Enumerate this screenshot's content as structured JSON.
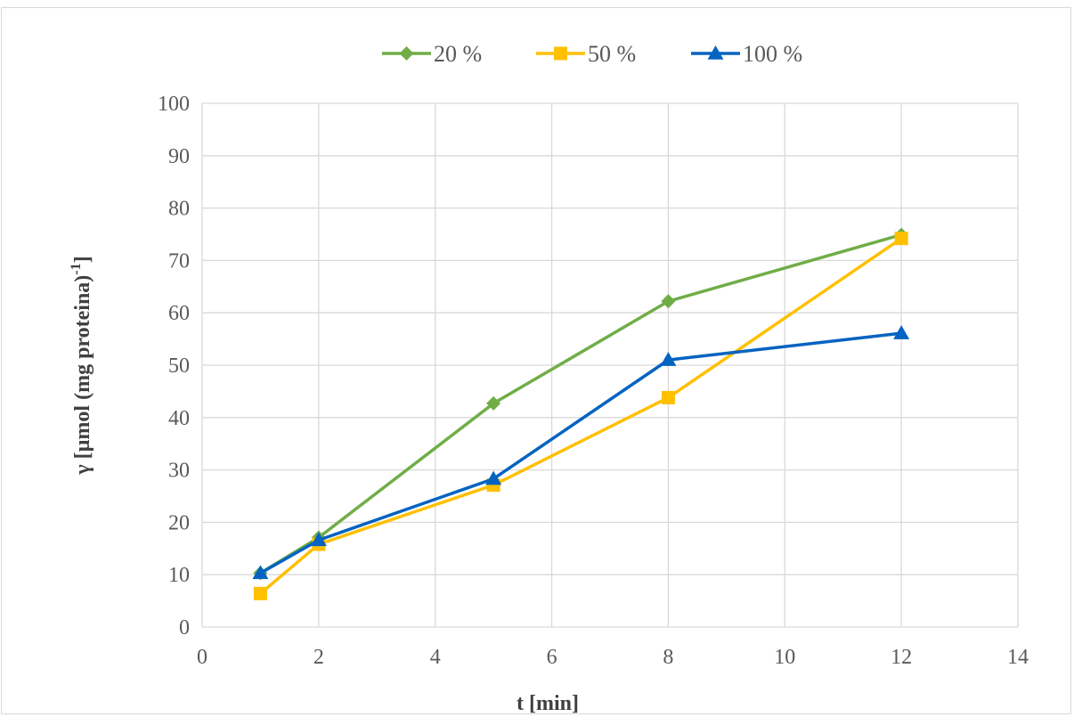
{
  "chart_data": {
    "type": "line",
    "title": "",
    "xlabel": "t [min]",
    "ylabel_main": "γ [µmol (mg proteina)",
    "ylabel_sup": "-1",
    "ylabel_close": "]",
    "xlim": [
      0,
      14
    ],
    "ylim": [
      0,
      100
    ],
    "xticks": [
      0,
      2,
      4,
      6,
      8,
      10,
      12,
      14
    ],
    "yticks": [
      0,
      10,
      20,
      30,
      40,
      50,
      60,
      70,
      80,
      90,
      100
    ],
    "grid": true,
    "legend_position": "top",
    "x": [
      1,
      2,
      5,
      8,
      12
    ],
    "series": [
      {
        "name": "20 %",
        "values": [
          10.3,
          17.1,
          42.7,
          62.2,
          74.9
        ],
        "color": "#70AD47",
        "marker": "diamond"
      },
      {
        "name": "50 %",
        "values": [
          6.4,
          15.8,
          27.1,
          43.8,
          74.2
        ],
        "color": "#FFC000",
        "marker": "square"
      },
      {
        "name": "100 %",
        "values": [
          10.3,
          16.6,
          28.3,
          51.0,
          56.1
        ],
        "color": "#0563C1",
        "marker": "triangle"
      }
    ]
  }
}
